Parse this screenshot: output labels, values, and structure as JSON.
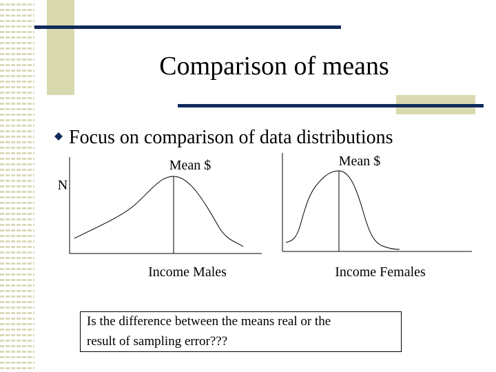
{
  "title": "Comparison of means",
  "bullet": "Focus on comparison of data distributions",
  "panels": [
    {
      "y_label": "N",
      "mean_label": "Mean $",
      "x_label": "Income Males"
    },
    {
      "mean_label": "Mean $",
      "x_label": "Income Females"
    }
  ],
  "note": {
    "lines": [
      "Is the difference between the means real or the",
      "result of sampling error???"
    ]
  }
}
